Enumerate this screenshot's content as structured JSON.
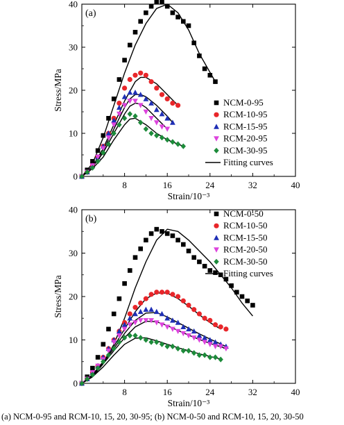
{
  "chart_data": [
    {
      "type": "scatter",
      "panel_label": "(a)",
      "xlabel": "Strain/10⁻³",
      "ylabel": "Stress/MPa",
      "xlim": [
        0,
        40
      ],
      "ylim": [
        0,
        40
      ],
      "xticks": [
        8,
        16,
        24,
        32,
        40
      ],
      "yticks": [
        0,
        10,
        20,
        30,
        40
      ],
      "legend_position": "center-right",
      "fit_label": "Fitting curves",
      "series": [
        {
          "name": "NCM-0-95",
          "marker": "square",
          "color": "#000000",
          "x": [
            0,
            1,
            2,
            3,
            4,
            5,
            6,
            7,
            8,
            9,
            10,
            11,
            12,
            13,
            14,
            15,
            16,
            17,
            18,
            19,
            20,
            21,
            22,
            23,
            24,
            25
          ],
          "y": [
            0,
            1.5,
            3.5,
            6,
            9.5,
            13.5,
            18,
            22.5,
            27,
            30.5,
            33.5,
            36,
            38,
            39.5,
            40.5,
            40.5,
            39.5,
            38,
            37,
            36,
            35,
            31,
            28,
            25,
            23.5,
            22
          ],
          "fit_x": [
            0,
            2,
            4,
            6,
            8,
            10,
            12,
            14,
            16,
            18,
            20,
            22,
            25
          ],
          "fit_y": [
            0,
            3,
            9,
            16.5,
            24,
            30.5,
            35.5,
            39,
            40,
            38,
            34,
            28.5,
            22
          ]
        },
        {
          "name": "RCM-10-95",
          "marker": "circle",
          "color": "#e8262a",
          "x": [
            0,
            1,
            2,
            3,
            4,
            5,
            6,
            7,
            8,
            9,
            10,
            11,
            12,
            13,
            14,
            15,
            16,
            17,
            18
          ],
          "y": [
            0,
            1,
            2.5,
            4.5,
            7,
            10,
            13.5,
            17,
            20.5,
            22.5,
            23.5,
            24,
            23.5,
            22,
            20.5,
            19,
            18,
            17,
            16.5
          ],
          "fit_x": [
            0,
            2,
            4,
            6,
            8,
            10,
            11,
            12,
            14,
            16,
            18
          ],
          "fit_y": [
            0,
            2.3,
            6.5,
            12,
            17.5,
            22,
            23,
            23,
            21.5,
            19,
            16.5
          ]
        },
        {
          "name": "RCM-15-95",
          "marker": "triangle-up",
          "color": "#1f2fb5",
          "x": [
            0,
            1,
            2,
            3,
            4,
            5,
            6,
            7,
            8,
            9,
            10,
            11,
            12,
            13,
            14,
            15,
            16,
            17
          ],
          "y": [
            0,
            1,
            2.5,
            4.5,
            7,
            10,
            13,
            16,
            18.5,
            19.5,
            19.5,
            19,
            18,
            17,
            15.5,
            14.5,
            13.5,
            12.5
          ],
          "fit_x": [
            0,
            2,
            4,
            6,
            8,
            9,
            10,
            11,
            12,
            14,
            16,
            17
          ],
          "fit_y": [
            0,
            2.3,
            6,
            11,
            16,
            18,
            19,
            19,
            18.5,
            16.5,
            14,
            12.5
          ]
        },
        {
          "name": "RCM-20-95",
          "marker": "triangle-down",
          "color": "#dd44dd",
          "x": [
            0,
            1,
            2,
            3,
            4,
            5,
            6,
            7,
            8,
            9,
            10,
            11,
            12,
            13,
            14,
            15,
            16
          ],
          "y": [
            0,
            1,
            2.5,
            4.5,
            6.5,
            9,
            12,
            14.5,
            16.5,
            17.5,
            17.5,
            16.5,
            15,
            13.5,
            12.5,
            11.5,
            11
          ],
          "fit_x": [
            0,
            2,
            4,
            6,
            8,
            9,
            10,
            11,
            12,
            14,
            16
          ],
          "fit_y": [
            0,
            2.2,
            5.5,
            10,
            14.5,
            16.3,
            17,
            16.8,
            16,
            13.5,
            11
          ]
        },
        {
          "name": "RCM-30-95",
          "marker": "diamond",
          "color": "#1d8b3a",
          "x": [
            0,
            1,
            2,
            3,
            4,
            5,
            6,
            7,
            8,
            9,
            10,
            11,
            12,
            13,
            14,
            15,
            16,
            17,
            18,
            19
          ],
          "y": [
            0,
            1,
            2,
            3.5,
            5.5,
            7.5,
            10,
            12,
            13.5,
            14.5,
            14,
            12.5,
            11,
            10,
            9.5,
            9,
            8.5,
            8,
            7.5,
            7
          ],
          "fit_x": [
            0,
            2,
            4,
            6,
            8,
            9,
            10,
            12,
            14,
            16,
            19
          ],
          "fit_y": [
            0,
            1.8,
            4.5,
            8.5,
            12,
            13.3,
            13.5,
            12,
            10,
            8.5,
            7
          ]
        }
      ]
    },
    {
      "type": "scatter",
      "panel_label": "(b)",
      "xlabel": "Strain/10⁻³",
      "ylabel": "Stress/MPa",
      "xlim": [
        0,
        40
      ],
      "ylim": [
        0,
        40
      ],
      "xticks": [
        8,
        16,
        24,
        32,
        40
      ],
      "yticks": [
        0,
        10,
        20,
        30,
        40
      ],
      "legend_position": "top-right",
      "fit_label": "Fitting curves",
      "series": [
        {
          "name": "NCM-0-50",
          "marker": "square",
          "color": "#000000",
          "x": [
            0,
            1,
            2,
            3,
            4,
            5,
            6,
            7,
            8,
            9,
            10,
            11,
            12,
            13,
            14,
            15,
            16,
            17,
            18,
            19,
            20,
            21,
            22,
            23,
            24,
            25,
            26,
            27,
            28,
            29,
            30,
            31,
            32
          ],
          "y": [
            0,
            1.5,
            3.5,
            6,
            9,
            12.5,
            16,
            19.5,
            23,
            26,
            29,
            31,
            33,
            34.5,
            35.5,
            35,
            34.5,
            34,
            33,
            32,
            30.5,
            29,
            28,
            27,
            26,
            25.5,
            25,
            24,
            22.5,
            21,
            20,
            19,
            18
          ],
          "fit_x": [
            0,
            2,
            4,
            6,
            8,
            10,
            12,
            14,
            16,
            18,
            20,
            22,
            24,
            26,
            28,
            30,
            32
          ],
          "fit_y": [
            0,
            1.5,
            4.5,
            9,
            15,
            22,
            28,
            33,
            35.5,
            35,
            33,
            30.5,
            28,
            25,
            22,
            18.5,
            15.5
          ]
        },
        {
          "name": "RCM-10-50",
          "marker": "circle",
          "color": "#e8262a",
          "x": [
            0,
            1,
            2,
            3,
            4,
            5,
            6,
            7,
            8,
            9,
            10,
            11,
            12,
            13,
            14,
            15,
            16,
            17,
            18,
            19,
            20,
            21,
            22,
            23,
            24,
            25,
            26,
            27
          ],
          "y": [
            0,
            1,
            2.5,
            4,
            6,
            8,
            10,
            12,
            14,
            16,
            17.5,
            18.5,
            19.5,
            20.5,
            21,
            21,
            21,
            20.5,
            20,
            19,
            18,
            17,
            16,
            15,
            14.5,
            13.5,
            13,
            12.5
          ],
          "fit_x": [
            0,
            2,
            4,
            6,
            8,
            10,
            12,
            14,
            16,
            18,
            20,
            22,
            24,
            26
          ],
          "fit_y": [
            0,
            2,
            5,
            8.5,
            12.5,
            16.5,
            19.5,
            20.8,
            20.8,
            19.5,
            17.8,
            15.8,
            14,
            12.5
          ]
        },
        {
          "name": "RCM-15-50",
          "marker": "triangle-up",
          "color": "#1f2fb5",
          "x": [
            0,
            1,
            2,
            3,
            4,
            5,
            6,
            7,
            8,
            9,
            10,
            11,
            12,
            13,
            14,
            15,
            16,
            17,
            18,
            19,
            20,
            21,
            22,
            23,
            24,
            25,
            26,
            27
          ],
          "y": [
            0,
            1,
            2.5,
            4,
            6,
            8,
            10,
            12,
            13.5,
            15,
            16,
            16.5,
            17,
            17,
            16.5,
            16,
            15,
            14.5,
            14,
            13,
            12.5,
            12,
            11,
            10.5,
            10,
            9.5,
            9,
            8.5
          ],
          "fit_x": [
            0,
            2,
            4,
            6,
            8,
            10,
            12,
            14,
            16,
            18,
            20,
            22,
            24,
            27
          ],
          "fit_y": [
            0,
            2,
            4.8,
            8,
            11.5,
            14.5,
            16.2,
            16.3,
            15.3,
            14,
            12.7,
            11.4,
            10.2,
            8.5
          ]
        },
        {
          "name": "RCM-20-50",
          "marker": "triangle-down",
          "color": "#dd44dd",
          "x": [
            0,
            1,
            2,
            3,
            4,
            5,
            6,
            7,
            8,
            9,
            10,
            11,
            12,
            13,
            14,
            15,
            16,
            17,
            18,
            19,
            20,
            21,
            22,
            23,
            24,
            25,
            26,
            27
          ],
          "y": [
            0,
            1,
            2.5,
            4,
            5.5,
            7.5,
            9.5,
            11,
            12.5,
            13.5,
            14,
            14.5,
            14.5,
            14.5,
            14,
            13.5,
            13,
            12.5,
            12,
            11.5,
            11,
            10.5,
            10,
            9.5,
            9,
            8.5,
            8.5,
            8
          ],
          "fit_x": [
            0,
            2,
            4,
            6,
            8,
            10,
            12,
            14,
            16,
            18,
            20,
            22,
            24,
            27
          ],
          "fit_y": [
            0,
            1.8,
            4.5,
            7.5,
            10.5,
            13,
            14.3,
            14.2,
            13.3,
            12.2,
            11.1,
            10.1,
            9.2,
            8
          ]
        },
        {
          "name": "RCM-30-50",
          "marker": "diamond",
          "color": "#1d8b3a",
          "x": [
            0,
            1,
            2,
            3,
            4,
            5,
            6,
            7,
            8,
            9,
            10,
            11,
            12,
            13,
            14,
            15,
            16,
            17,
            18,
            19,
            20,
            21,
            22,
            23,
            24,
            25,
            26
          ],
          "y": [
            0,
            1,
            2,
            3.5,
            5,
            6.5,
            8,
            9.5,
            10.5,
            11,
            11,
            10.5,
            10,
            9.5,
            9.5,
            9,
            8.5,
            8.5,
            8,
            7.5,
            7.5,
            7,
            6.5,
            6.5,
            6,
            6,
            5.5
          ],
          "fit_x": [
            0,
            2,
            4,
            6,
            8,
            10,
            12,
            14,
            16,
            18,
            20,
            22,
            24,
            26
          ],
          "fit_y": [
            0,
            1.5,
            3.8,
            6.5,
            9,
            10.4,
            10.5,
            9.8,
            9,
            8.2,
            7.5,
            6.8,
            6.2,
            5.6
          ]
        }
      ]
    }
  ],
  "caption": "(a) NCM-0-95 and RCM-10, 15, 20, 30-95; (b) NCM-0-50 and RCM-10, 15, 20, 30-50"
}
